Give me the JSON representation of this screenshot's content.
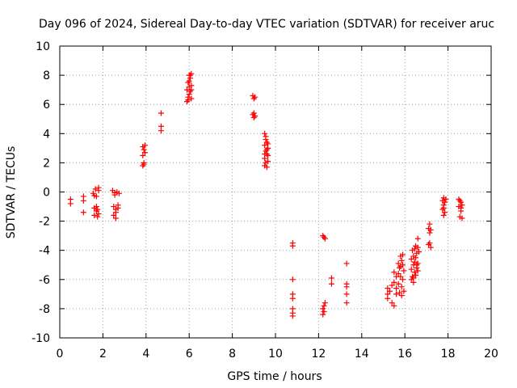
{
  "chart_data": {
    "type": "scatter",
    "title": "Day 096 of 2024, Sidereal Day-to-day VTEC variation (SDTVAR) for receiver aruc",
    "xlabel": "GPS time / hours",
    "ylabel": "SDTVAR / TECUs",
    "xlim": [
      0,
      20
    ],
    "ylim": [
      -10,
      10
    ],
    "xticks": [
      0,
      2,
      4,
      6,
      8,
      10,
      12,
      14,
      16,
      18,
      20
    ],
    "yticks": [
      -10,
      -8,
      -6,
      -4,
      -2,
      0,
      2,
      4,
      6,
      8,
      10
    ],
    "xtick_labels": [
      "0",
      "2",
      "4",
      "6",
      "8",
      "10",
      "12",
      "14",
      "16",
      "18",
      "20"
    ],
    "ytick_labels": [
      "-10",
      "-8",
      "-6",
      "-4",
      "-2",
      "0",
      "2",
      "4",
      "6",
      "8",
      "10"
    ],
    "grid": true,
    "marker": "+",
    "color": "#ff0000",
    "series": [
      {
        "name": "SDTVAR",
        "points": [
          [
            0.5,
            -0.5
          ],
          [
            0.5,
            -0.8
          ],
          [
            1.1,
            -0.3
          ],
          [
            1.1,
            -0.6
          ],
          [
            1.1,
            -1.4
          ],
          [
            1.55,
            -0.1
          ],
          [
            1.6,
            -1.1
          ],
          [
            1.6,
            -1.6
          ],
          [
            1.65,
            0.2
          ],
          [
            1.7,
            -0.3
          ],
          [
            1.7,
            -1.3
          ],
          [
            1.75,
            -1.7
          ],
          [
            1.8,
            0.3
          ],
          [
            1.8,
            -1.5
          ],
          [
            1.6,
            -0.25
          ],
          [
            1.7,
            -1.0
          ],
          [
            1.75,
            -1.2
          ],
          [
            1.8,
            0.1
          ],
          [
            2.45,
            0.1
          ],
          [
            2.5,
            -1.0
          ],
          [
            2.5,
            -1.6
          ],
          [
            2.55,
            -0.2
          ],
          [
            2.6,
            -1.2
          ],
          [
            2.6,
            -1.8
          ],
          [
            2.65,
            0.0
          ],
          [
            2.7,
            -0.9
          ],
          [
            2.75,
            -0.1
          ],
          [
            2.55,
            -0.05
          ],
          [
            2.6,
            -1.4
          ],
          [
            2.7,
            -1.1
          ],
          [
            3.85,
            3.1
          ],
          [
            3.85,
            2.5
          ],
          [
            3.85,
            1.8
          ],
          [
            3.9,
            2.9
          ],
          [
            3.9,
            2.0
          ],
          [
            3.95,
            2.7
          ],
          [
            3.95,
            3.2
          ],
          [
            3.9,
            1.9
          ],
          [
            4.7,
            5.4
          ],
          [
            4.7,
            4.5
          ],
          [
            4.7,
            4.2
          ],
          [
            5.9,
            6.2
          ],
          [
            5.9,
            7.0
          ],
          [
            5.95,
            7.5
          ],
          [
            5.95,
            6.5
          ],
          [
            6.0,
            8.0
          ],
          [
            6.0,
            7.2
          ],
          [
            6.0,
            6.7
          ],
          [
            6.05,
            7.8
          ],
          [
            6.05,
            6.9
          ],
          [
            6.1,
            8.1
          ],
          [
            6.1,
            7.3
          ],
          [
            6.1,
            6.4
          ],
          [
            5.95,
            6.3
          ],
          [
            6.0,
            7.6
          ],
          [
            6.05,
            8.0
          ],
          [
            6.1,
            7.0
          ],
          [
            8.95,
            6.6
          ],
          [
            9.0,
            6.4
          ],
          [
            9.05,
            6.5
          ],
          [
            8.95,
            5.3
          ],
          [
            9.0,
            5.1
          ],
          [
            9.05,
            5.2
          ],
          [
            9.0,
            5.4
          ],
          [
            9.5,
            4.0
          ],
          [
            9.5,
            3.2
          ],
          [
            9.5,
            2.3
          ],
          [
            9.5,
            1.8
          ],
          [
            9.55,
            3.6
          ],
          [
            9.55,
            2.8
          ],
          [
            9.55,
            2.0
          ],
          [
            9.6,
            3.4
          ],
          [
            9.6,
            2.6
          ],
          [
            9.6,
            1.7
          ],
          [
            9.65,
            3.0
          ],
          [
            9.65,
            2.5
          ],
          [
            9.65,
            2.1
          ],
          [
            9.55,
            3.8
          ],
          [
            9.6,
            2.9
          ],
          [
            9.5,
            2.6
          ],
          [
            9.65,
            3.3
          ],
          [
            10.8,
            -3.5
          ],
          [
            10.8,
            -3.7
          ],
          [
            10.8,
            -6.0
          ],
          [
            10.8,
            -7.0
          ],
          [
            10.8,
            -7.3
          ],
          [
            10.8,
            -8.0
          ],
          [
            10.8,
            -8.3
          ],
          [
            10.8,
            -8.5
          ],
          [
            12.2,
            -3.0
          ],
          [
            12.25,
            -3.1
          ],
          [
            12.3,
            -3.2
          ],
          [
            12.2,
            -8.0
          ],
          [
            12.2,
            -8.4
          ],
          [
            12.25,
            -7.8
          ],
          [
            12.3,
            -7.6
          ],
          [
            12.25,
            -8.2
          ],
          [
            12.6,
            -5.9
          ],
          [
            12.6,
            -6.3
          ],
          [
            13.3,
            -4.9
          ],
          [
            13.3,
            -6.3
          ],
          [
            13.3,
            -6.5
          ],
          [
            13.3,
            -7.0
          ],
          [
            13.3,
            -7.6
          ],
          [
            15.2,
            -6.6
          ],
          [
            15.2,
            -7.0
          ],
          [
            15.2,
            -7.3
          ],
          [
            15.3,
            -6.8
          ],
          [
            15.4,
            -6.4
          ],
          [
            15.4,
            -7.6
          ],
          [
            15.5,
            -5.5
          ],
          [
            15.5,
            -7.8
          ],
          [
            15.5,
            -6.2
          ],
          [
            15.6,
            -5.8
          ],
          [
            15.6,
            -6.6
          ],
          [
            15.6,
            -7.0
          ],
          [
            15.7,
            -4.9
          ],
          [
            15.7,
            -5.6
          ],
          [
            15.7,
            -6.3
          ],
          [
            15.75,
            -6.9
          ],
          [
            15.8,
            -4.4
          ],
          [
            15.8,
            -5.1
          ],
          [
            15.8,
            -5.8
          ],
          [
            15.85,
            -6.5
          ],
          [
            15.85,
            -7.1
          ],
          [
            15.9,
            -4.3
          ],
          [
            15.9,
            -5.0
          ],
          [
            15.9,
            -6.0
          ],
          [
            15.95,
            -5.4
          ],
          [
            15.95,
            -6.8
          ],
          [
            15.75,
            -5.2
          ],
          [
            15.85,
            -4.7
          ],
          [
            16.3,
            -4.6
          ],
          [
            16.3,
            -5.3
          ],
          [
            16.3,
            -6.0
          ],
          [
            16.35,
            -4.0
          ],
          [
            16.35,
            -5.8
          ],
          [
            16.4,
            -4.4
          ],
          [
            16.4,
            -5.0
          ],
          [
            16.4,
            -6.2
          ],
          [
            16.45,
            -3.9
          ],
          [
            16.45,
            -4.8
          ],
          [
            16.45,
            -5.5
          ],
          [
            16.5,
            -3.7
          ],
          [
            16.5,
            -4.5
          ],
          [
            16.5,
            -5.7
          ],
          [
            16.55,
            -4.2
          ],
          [
            16.55,
            -5.2
          ],
          [
            16.6,
            -3.2
          ],
          [
            16.6,
            -3.8
          ],
          [
            16.6,
            -4.9
          ],
          [
            16.6,
            -5.4
          ],
          [
            16.65,
            -4.1
          ],
          [
            16.4,
            -5.9
          ],
          [
            16.55,
            -5.0
          ],
          [
            17.1,
            -2.5
          ],
          [
            17.1,
            -3.6
          ],
          [
            17.15,
            -2.2
          ],
          [
            17.15,
            -2.8
          ],
          [
            17.2,
            -3.8
          ],
          [
            17.2,
            -2.6
          ],
          [
            17.15,
            -3.5
          ],
          [
            17.75,
            -0.6
          ],
          [
            17.75,
            -1.2
          ],
          [
            17.8,
            -0.4
          ],
          [
            17.8,
            -0.9
          ],
          [
            17.8,
            -1.6
          ],
          [
            17.85,
            -0.7
          ],
          [
            17.85,
            -1.4
          ],
          [
            17.9,
            -0.5
          ],
          [
            17.8,
            -1.1
          ],
          [
            18.5,
            -0.5
          ],
          [
            18.5,
            -1.0
          ],
          [
            18.55,
            -1.7
          ],
          [
            18.6,
            -0.7
          ],
          [
            18.6,
            -1.3
          ],
          [
            18.65,
            -0.9
          ],
          [
            18.65,
            -1.8
          ],
          [
            18.55,
            -0.6
          ],
          [
            18.6,
            -1.1
          ]
        ]
      }
    ]
  }
}
